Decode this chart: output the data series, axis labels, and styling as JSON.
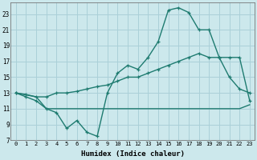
{
  "title": "",
  "xlabel": "Humidex (Indice chaleur)",
  "bg_color": "#cce8ec",
  "line_color": "#1e7b70",
  "grid_color": "#aad0d8",
  "ylim": [
    7,
    24.5
  ],
  "xlim": [
    -0.5,
    23.5
  ],
  "yticks": [
    7,
    9,
    11,
    13,
    15,
    17,
    19,
    21,
    23
  ],
  "xticks": [
    0,
    1,
    2,
    3,
    4,
    5,
    6,
    7,
    8,
    9,
    10,
    11,
    12,
    13,
    14,
    15,
    16,
    17,
    18,
    19,
    20,
    21,
    22,
    23
  ],
  "line1_x": [
    0,
    1,
    2,
    3,
    4,
    5,
    6,
    7,
    8,
    9,
    10,
    11,
    12,
    13,
    14,
    15,
    16,
    17,
    18,
    19,
    20,
    21,
    22,
    23
  ],
  "line1_y": [
    13,
    12.5,
    12,
    11,
    10.5,
    8.5,
    9.5,
    8.0,
    7.5,
    13.0,
    15.5,
    16.5,
    16.0,
    17.5,
    19.5,
    23.5,
    23.8,
    23.2,
    21.0,
    21.0,
    17.5,
    15.0,
    13.5,
    13.0
  ],
  "line2_x": [
    0,
    1,
    2,
    3,
    4,
    5,
    6,
    7,
    8,
    9,
    10,
    11,
    12,
    13,
    14,
    15,
    16,
    17,
    18,
    19,
    20,
    21,
    22,
    23
  ],
  "line2_y": [
    13,
    12.8,
    12.5,
    12.5,
    13.0,
    13.0,
    13.2,
    13.5,
    13.8,
    14.0,
    14.5,
    15.0,
    15.0,
    15.5,
    16.0,
    16.5,
    17.0,
    17.5,
    18.0,
    17.5,
    17.5,
    17.5,
    17.5,
    12.0
  ],
  "line3_x": [
    0,
    2,
    3,
    9,
    22,
    23
  ],
  "line3_y": [
    13,
    12.5,
    11,
    11,
    11,
    11.5
  ]
}
